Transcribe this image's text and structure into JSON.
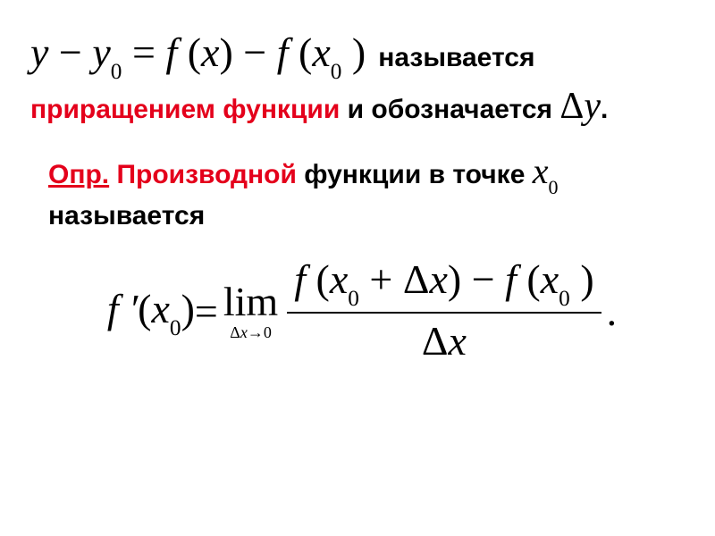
{
  "colors": {
    "background": "#ffffff",
    "text": "#000000",
    "red": "#e4001b"
  },
  "block1": {
    "formula_y": "y",
    "formula_minus": " − ",
    "formula_y0": "y",
    "formula_y0_sub": "0",
    "formula_eq": " = ",
    "formula_f": " f ",
    "formula_lp": "(",
    "formula_x": "x",
    "formula_rp": ")",
    "formula_minus2": " − ",
    "formula_f2": " f ",
    "formula_lp2": "(",
    "formula_x0": "x",
    "formula_x0_sub": "0",
    "formula_rp2": " )",
    "text_after": "называется",
    "line2_red": "приращением функции",
    "line2_rest": " и обозначается ",
    "delta": "Δ",
    "delta_y": "y",
    "period": "."
  },
  "block2": {
    "opr": "Опр.",
    "derivative": " Производной",
    "rest1": " функции в точке ",
    "x0_x": "x",
    "x0_sub": "0",
    "rest2": "называется"
  },
  "formula": {
    "f_prime": "f ′",
    "lp1": "(",
    "x0": "x",
    "x0_sub": "0",
    "rp1": ")",
    "eq": " = ",
    "lim": "lim",
    "lim_delta": "Δ",
    "lim_x": "x",
    "lim_arrow": "→",
    "lim_zero": "0",
    "num_f1": "f ",
    "num_lp1": "(",
    "num_x0": "x",
    "num_x0_sub": "0",
    "num_plus": " + ",
    "num_delta": "Δ",
    "num_dx": "x",
    "num_rp1": ")",
    "num_minus": " − ",
    "num_f2": " f ",
    "num_lp2": "(",
    "num_x02": "x",
    "num_x02_sub": "0",
    "num_rp2": " )",
    "den_delta": "Δ",
    "den_x": "x",
    "period": "."
  }
}
